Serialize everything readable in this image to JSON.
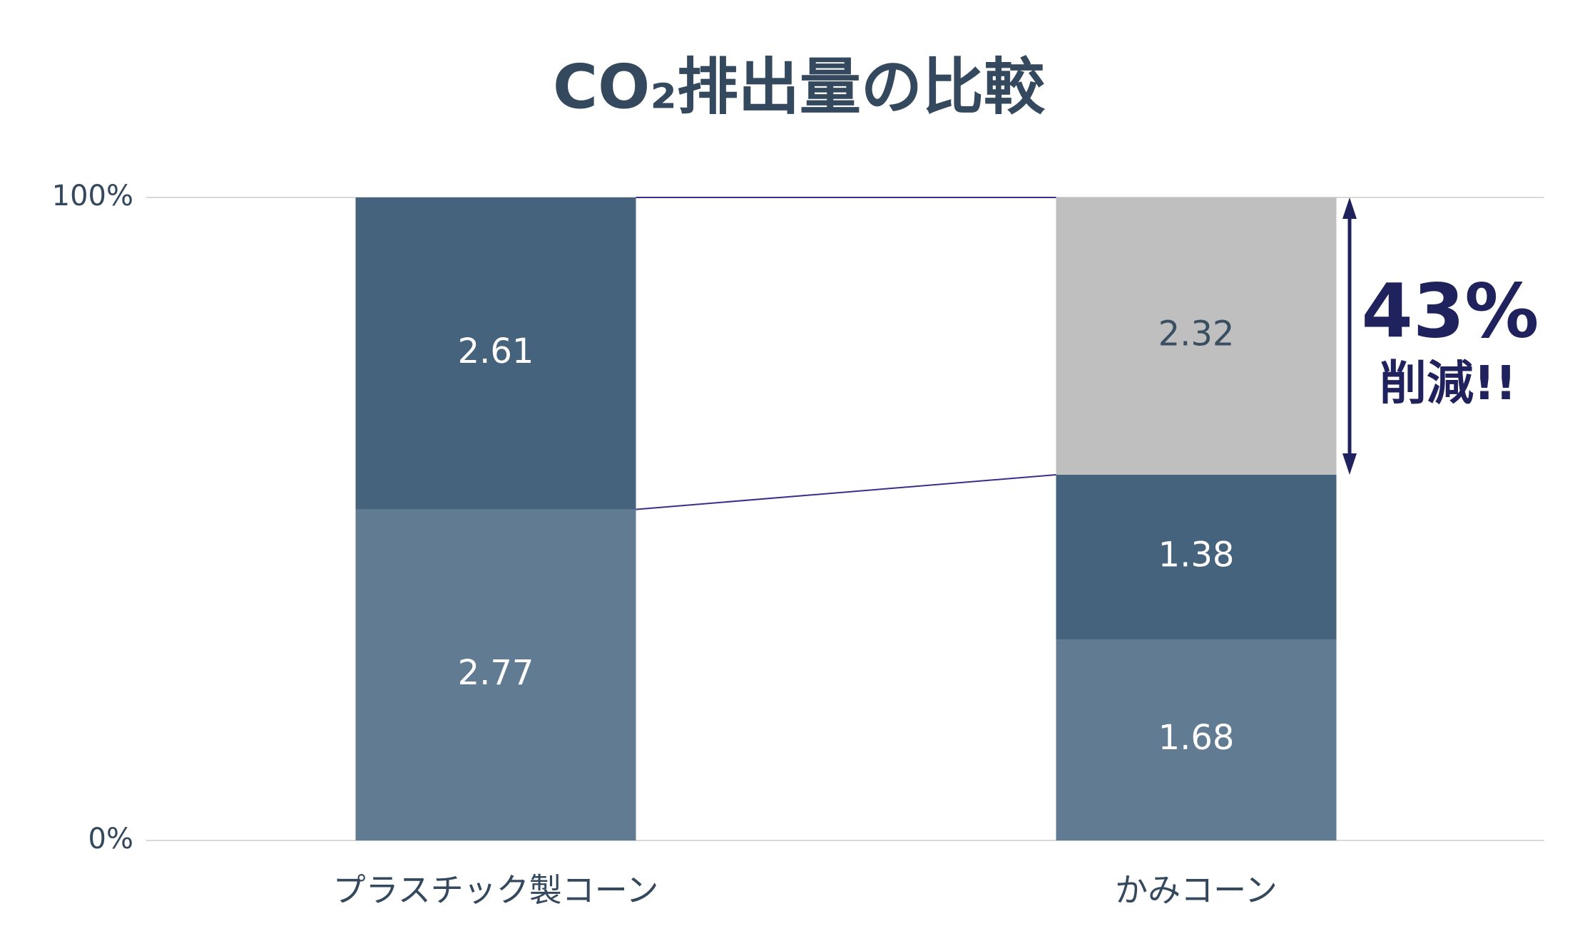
{
  "chart_data": {
    "type": "stacked_bar_percent",
    "title": "CO₂排出量の比較",
    "categories": [
      "プラスチック製コーン",
      "かみコーン"
    ],
    "series": [
      {
        "color": "#617b93",
        "label_color": "#ffffff",
        "values": [
          2.77,
          1.68
        ]
      },
      {
        "color": "#46637d",
        "label_color": "#ffffff",
        "values": [
          2.61,
          1.38
        ]
      },
      {
        "color": "#bfbfbf",
        "label_color": "#3b4f63",
        "values": [
          null,
          2.32
        ]
      }
    ],
    "ylim": [
      0,
      100
    ],
    "yticks": [
      {
        "value": 0,
        "label": "0%"
      },
      {
        "value": 100,
        "label": "100%"
      }
    ],
    "grid": true,
    "annotation": {
      "value_text": "43%",
      "text": "削減!!",
      "color": "#20225e"
    }
  }
}
